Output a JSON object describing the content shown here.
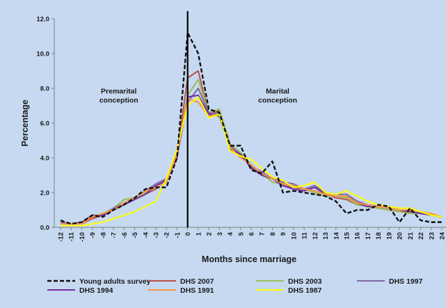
{
  "chart_data": {
    "type": "line",
    "title": "",
    "xlabel": "Months since marriage",
    "ylabel": "Percentage",
    "x": [
      -12,
      -11,
      -10,
      -9,
      -8,
      -7,
      -6,
      -5,
      -4,
      -3,
      -2,
      -1,
      0,
      1,
      2,
      3,
      4,
      5,
      6,
      7,
      8,
      9,
      10,
      11,
      12,
      13,
      14,
      15,
      16,
      17,
      18,
      19,
      20,
      21,
      22,
      23,
      24
    ],
    "xlim": [
      -12,
      24
    ],
    "ylim": [
      0,
      12
    ],
    "y_ticks": [
      "0.0",
      "2.0",
      "4.0",
      "6.0",
      "8.0",
      "10.0",
      "12.0"
    ],
    "annotations": [
      {
        "lines": [
          "Premarital",
          "conception"
        ],
        "x": -6.5,
        "y": 7.7
      },
      {
        "lines": [
          "Marital",
          "conception"
        ],
        "x": 8.5,
        "y": 7.7
      }
    ],
    "marriage_line_x": 0,
    "legend_position": "bottom",
    "colors": {
      "background": "#c6d9f1",
      "young_adults": "#111111",
      "dhs2007": "#c0504d",
      "dhs2003": "#9bbb59",
      "dhs1997": "#8064a2",
      "dhs1994": "#7030a0",
      "dhs1991": "#f79646",
      "dhs1987": "#ffff00"
    },
    "series": [
      {
        "name": "Young adults survey",
        "color_key": "young_adults",
        "dash": true,
        "values": [
          0.4,
          0.2,
          0.3,
          0.7,
          0.6,
          1.0,
          1.3,
          1.7,
          2.2,
          2.3,
          2.3,
          4.0,
          11.2,
          10.0,
          6.8,
          6.6,
          4.7,
          4.7,
          3.3,
          3.1,
          3.8,
          2.0,
          2.1,
          2.0,
          1.9,
          1.8,
          1.5,
          0.8,
          1.0,
          1.0,
          1.3,
          1.2,
          0.3,
          1.1,
          0.4,
          0.3,
          0.3
        ]
      },
      {
        "name": "DHS 2007",
        "color_key": "dhs2007",
        "dash": false,
        "values": [
          0.2,
          0.2,
          0.2,
          0.5,
          0.7,
          1.0,
          1.4,
          1.6,
          1.9,
          2.2,
          2.8,
          4.2,
          8.6,
          9.0,
          6.5,
          6.7,
          4.6,
          4.1,
          3.5,
          3.0,
          2.8,
          2.5,
          2.3,
          2.2,
          2.1,
          1.9,
          1.7,
          1.6,
          1.3,
          1.2,
          1.1,
          1.0,
          0.9,
          0.9,
          0.8,
          0.7,
          0.6
        ]
      },
      {
        "name": "DHS 2003",
        "color_key": "dhs2003",
        "dash": false,
        "values": [
          0.2,
          0.2,
          0.3,
          0.6,
          0.8,
          1.1,
          1.6,
          1.7,
          2.0,
          2.3,
          2.6,
          4.2,
          7.6,
          8.5,
          6.6,
          6.8,
          4.8,
          4.3,
          3.6,
          3.1,
          2.6,
          2.5,
          2.4,
          2.2,
          2.0,
          1.8,
          1.8,
          1.7,
          1.3,
          1.2,
          1.1,
          1.0,
          0.9,
          0.8,
          0.8,
          0.7,
          0.6
        ]
      },
      {
        "name": "DHS 1997",
        "color_key": "dhs1997",
        "dash": false,
        "values": [
          0.3,
          0.2,
          0.3,
          0.7,
          0.7,
          1.1,
          1.4,
          1.7,
          2.1,
          2.5,
          2.8,
          4.1,
          7.2,
          8.0,
          6.6,
          6.5,
          4.7,
          4.2,
          3.5,
          3.2,
          2.8,
          2.6,
          2.5,
          2.2,
          2.4,
          2.0,
          1.9,
          1.9,
          1.5,
          1.3,
          1.2,
          1.1,
          1.0,
          1.0,
          0.9,
          0.7,
          0.6
        ]
      },
      {
        "name": "DHS 1994",
        "color_key": "dhs1994",
        "dash": false,
        "values": [
          0.2,
          0.2,
          0.2,
          0.6,
          0.7,
          1.0,
          1.3,
          1.6,
          1.9,
          2.4,
          2.7,
          4.0,
          7.5,
          7.6,
          6.5,
          6.4,
          4.5,
          4.2,
          3.4,
          3.0,
          2.8,
          2.4,
          2.2,
          2.1,
          2.3,
          1.9,
          1.8,
          1.8,
          1.4,
          1.2,
          1.2,
          1.1,
          1.0,
          0.9,
          0.8,
          0.7,
          0.6
        ]
      },
      {
        "name": "DHS 1991",
        "color_key": "dhs1991",
        "dash": false,
        "values": [
          0.2,
          0.2,
          0.2,
          0.6,
          0.8,
          1.0,
          1.4,
          1.7,
          2.1,
          2.3,
          2.6,
          4.2,
          7.4,
          7.2,
          6.4,
          6.5,
          4.6,
          4.0,
          3.6,
          3.1,
          2.8,
          2.5,
          2.4,
          2.2,
          2.1,
          1.9,
          1.8,
          1.8,
          1.4,
          1.3,
          1.2,
          1.1,
          1.0,
          1.0,
          0.9,
          0.8,
          0.6
        ]
      },
      {
        "name": "DHS 1987",
        "color_key": "dhs1987",
        "dash": false,
        "values": [
          0.1,
          0.1,
          0.1,
          0.2,
          0.3,
          0.5,
          0.7,
          0.9,
          1.2,
          1.5,
          2.8,
          4.5,
          7.0,
          7.5,
          6.3,
          6.5,
          4.4,
          4.1,
          3.9,
          3.4,
          2.9,
          2.7,
          2.3,
          2.4,
          2.6,
          2.0,
          1.9,
          2.1,
          1.8,
          1.5,
          1.3,
          1.2,
          1.1,
          1.1,
          0.9,
          0.7,
          0.6
        ]
      }
    ],
    "legend_rows": [
      [
        "Young adults survey",
        "DHS 2007",
        "DHS 2003",
        "DHS 1997"
      ],
      [
        "DHS 1994",
        "DHS 1991",
        "DHS 1987"
      ]
    ]
  }
}
